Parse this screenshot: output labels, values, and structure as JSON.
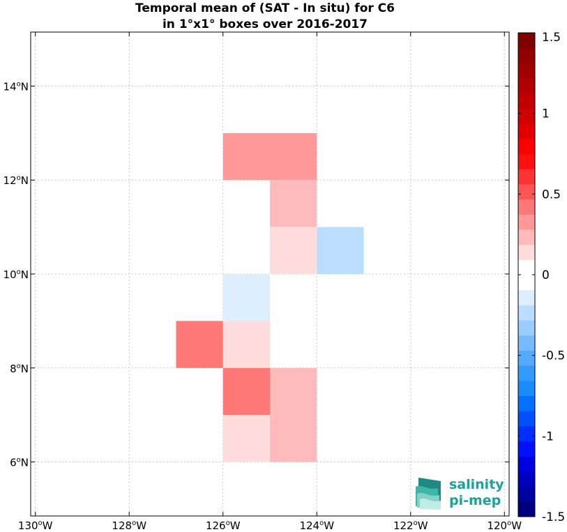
{
  "chart_data": {
    "type": "heatmap",
    "title_lines": [
      "Temporal mean of (SAT - In situ) for C6",
      "in 1°x1° boxes over 2016-2017"
    ],
    "x_ticks": [
      {
        "value": -130,
        "deg": "130",
        "hemi": "W"
      },
      {
        "value": -128,
        "deg": "128",
        "hemi": "W"
      },
      {
        "value": -126,
        "deg": "126",
        "hemi": "W"
      },
      {
        "value": -124,
        "deg": "124",
        "hemi": "W"
      },
      {
        "value": -122,
        "deg": "122",
        "hemi": "W"
      },
      {
        "value": -120,
        "deg": "120",
        "hemi": "W"
      }
    ],
    "y_ticks": [
      {
        "value": 6,
        "deg": "6",
        "hemi": "N"
      },
      {
        "value": 8,
        "deg": "8",
        "hemi": "N"
      },
      {
        "value": 10,
        "deg": "10",
        "hemi": "N"
      },
      {
        "value": 12,
        "deg": "12",
        "hemi": "N"
      },
      {
        "value": 14,
        "deg": "14",
        "hemi": "N"
      }
    ],
    "xlim": [
      -130.1,
      -119.9
    ],
    "ylim": [
      4.85,
      15.15
    ],
    "grid": true,
    "cells": [
      {
        "lon": -126,
        "lat": 12,
        "value": 0.35
      },
      {
        "lon": -125,
        "lat": 12,
        "value": 0.35
      },
      {
        "lon": -125,
        "lat": 11,
        "value": 0.25
      },
      {
        "lon": -125,
        "lat": 10,
        "value": 0.1
      },
      {
        "lon": -124,
        "lat": 10,
        "value": -0.25
      },
      {
        "lon": -126,
        "lat": 9,
        "value": -0.1
      },
      {
        "lon": -127,
        "lat": 8,
        "value": 0.4
      },
      {
        "lon": -126,
        "lat": 8,
        "value": 0.1
      },
      {
        "lon": -126,
        "lat": 7,
        "value": 0.45
      },
      {
        "lon": -125,
        "lat": 7,
        "value": 0.25
      },
      {
        "lon": -126,
        "lat": 6,
        "value": 0.1
      },
      {
        "lon": -125,
        "lat": 6,
        "value": 0.25
      }
    ],
    "colorbar": {
      "min": -1.5,
      "max": 1.5,
      "colors": [
        "#00007f",
        "#0000a0",
        "#0000c0",
        "#0000e0",
        "#0010ff",
        "#0030ff",
        "#0050ff",
        "#0070ff",
        "#1a8cff",
        "#3399ff",
        "#55aaff",
        "#77bbff",
        "#99ccff",
        "#bbddff",
        "#ddeeff",
        "#ffffff",
        "#ffffff",
        "#ffdddd",
        "#ffbbbb",
        "#ff9999",
        "#ff7777",
        "#ff5555",
        "#ff3333",
        "#ff1010",
        "#ff0000",
        "#e00000",
        "#d00000",
        "#c00000",
        "#b00000",
        "#a00000",
        "#900000",
        "#7f0000"
      ],
      "ticks": [
        {
          "value": 1.5,
          "label": "1.5"
        },
        {
          "value": 1,
          "label": "1"
        },
        {
          "value": 0.5,
          "label": "0.5"
        },
        {
          "value": 0,
          "label": "0"
        },
        {
          "value": -0.5,
          "label": "-0.5"
        },
        {
          "value": -1,
          "label": "-1"
        },
        {
          "value": -1.5,
          "label": "-1.5"
        }
      ]
    }
  },
  "logo": {
    "line1": "salinity",
    "line2": "pi-mep"
  }
}
